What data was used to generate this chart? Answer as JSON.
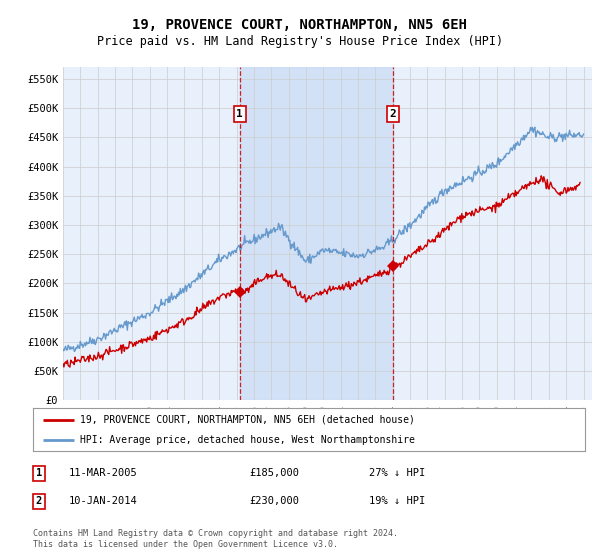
{
  "title": "19, PROVENCE COURT, NORTHAMPTON, NN5 6EH",
  "subtitle": "Price paid vs. HM Land Registry's House Price Index (HPI)",
  "ylabel_ticks": [
    "£0",
    "£50K",
    "£100K",
    "£150K",
    "£200K",
    "£250K",
    "£300K",
    "£350K",
    "£400K",
    "£450K",
    "£500K",
    "£550K"
  ],
  "ytick_values": [
    0,
    50000,
    100000,
    150000,
    200000,
    250000,
    300000,
    350000,
    400000,
    450000,
    500000,
    550000
  ],
  "ylim": [
    0,
    570000
  ],
  "xlim_start": 1995.0,
  "xlim_end": 2025.5,
  "background_color": "#ffffff",
  "plot_bg_color": "#e8f0fb",
  "grid_color": "#cccccc",
  "hpi_color": "#6699cc",
  "price_color": "#cc0000",
  "shade_color": "#c5d8f5",
  "marker1_x": 2005.19,
  "marker1_y": 185000,
  "marker2_x": 2014.03,
  "marker2_y": 230000,
  "vline_color": "#cc0000",
  "legend_label_red": "19, PROVENCE COURT, NORTHAMPTON, NN5 6EH (detached house)",
  "legend_label_blue": "HPI: Average price, detached house, West Northamptonshire",
  "table_row1": [
    "1",
    "11-MAR-2005",
    "£185,000",
    "27% ↓ HPI"
  ],
  "table_row2": [
    "2",
    "10-JAN-2014",
    "£230,000",
    "19% ↓ HPI"
  ],
  "footer": "Contains HM Land Registry data © Crown copyright and database right 2024.\nThis data is licensed under the Open Government Licence v3.0.",
  "title_fontsize": 10,
  "subtitle_fontsize": 8.5,
  "tick_fontsize": 7.5,
  "label_fontsize": 8,
  "xticks": [
    1995,
    1996,
    1997,
    1998,
    1999,
    2000,
    2001,
    2002,
    2003,
    2004,
    2005,
    2006,
    2007,
    2008,
    2009,
    2010,
    2011,
    2012,
    2013,
    2014,
    2015,
    2016,
    2017,
    2018,
    2019,
    2020,
    2021,
    2022,
    2023,
    2024,
    2025
  ]
}
